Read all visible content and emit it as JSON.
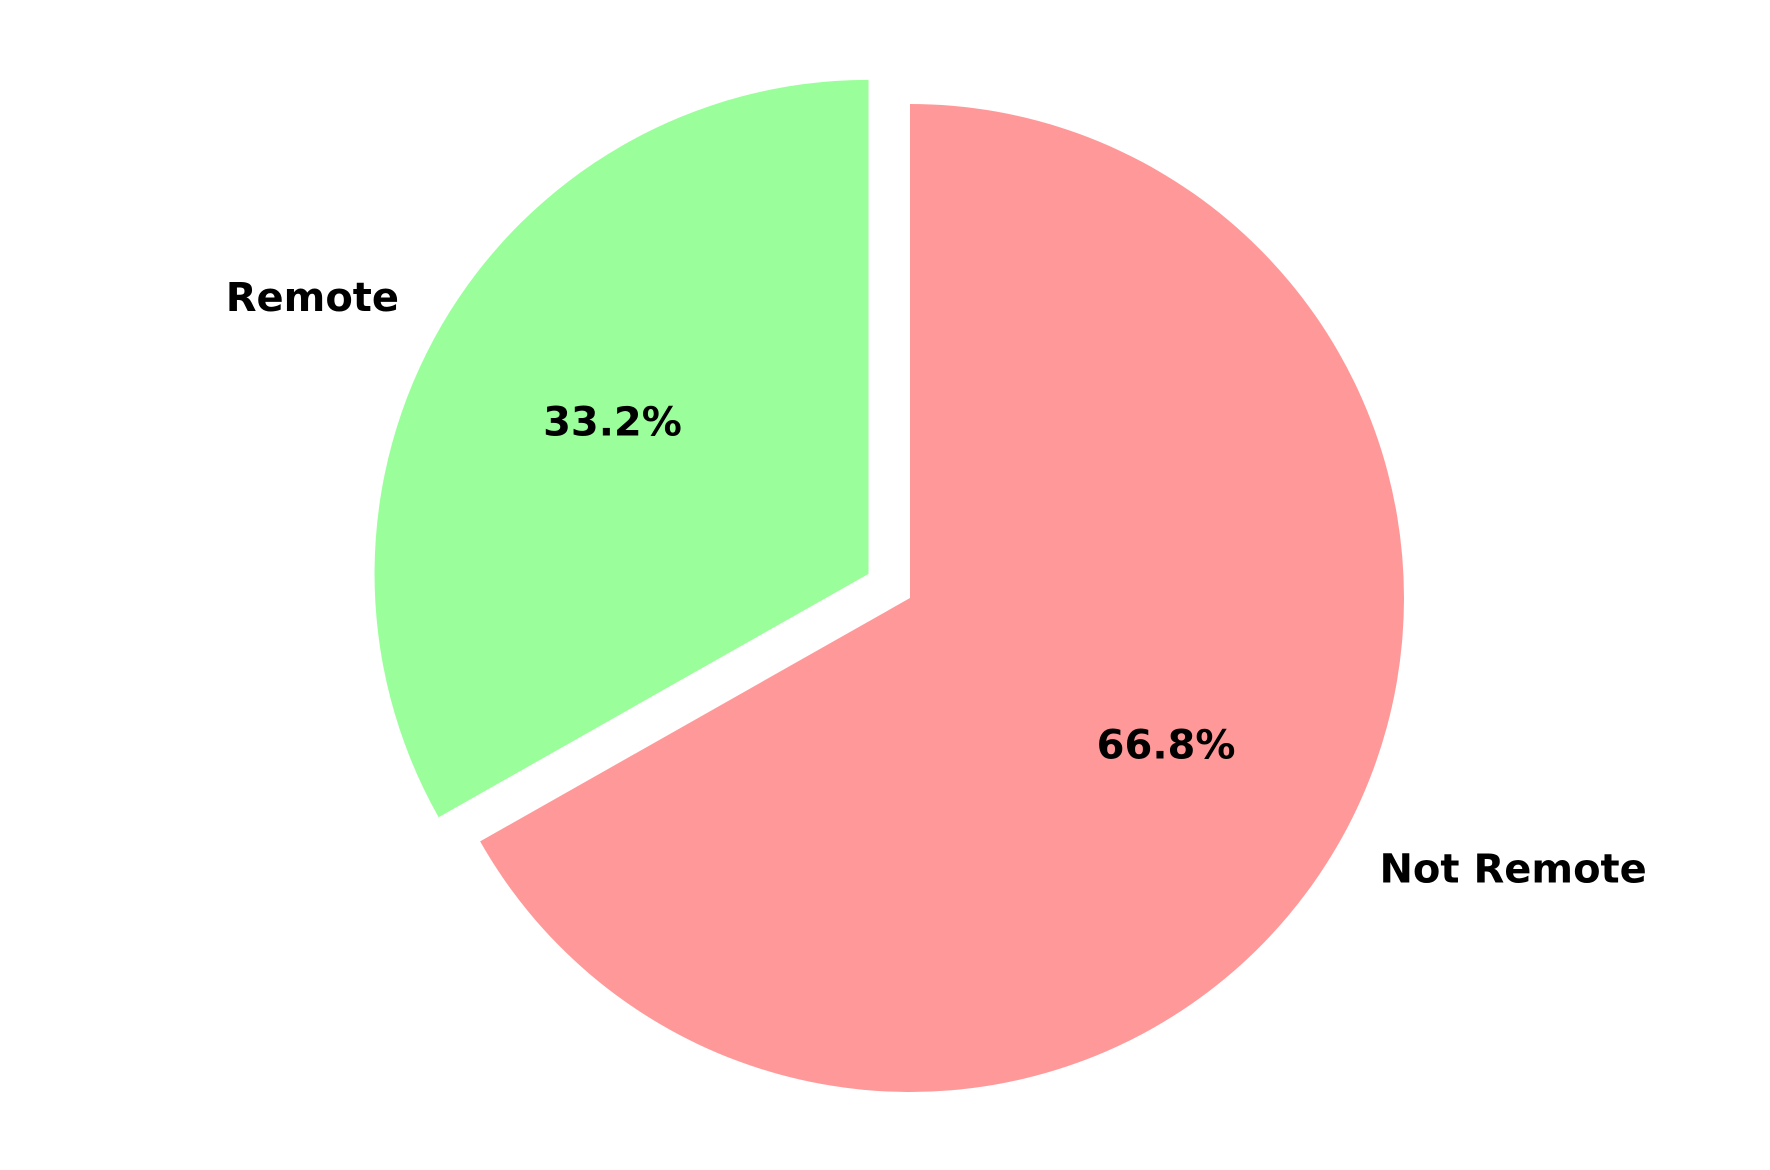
{
  "chart_data": {
    "type": "pie",
    "title": "",
    "slices": [
      {
        "label": "Remote",
        "value": 33.2,
        "percent_label": "33.2%",
        "color": "#9aff9a",
        "exploded": true
      },
      {
        "label": "Not Remote",
        "value": 66.8,
        "percent_label": "66.8%",
        "color": "#ff9999",
        "exploded": false
      }
    ],
    "start_angle_deg": 90,
    "direction": "counterclockwise",
    "legend": "none"
  }
}
